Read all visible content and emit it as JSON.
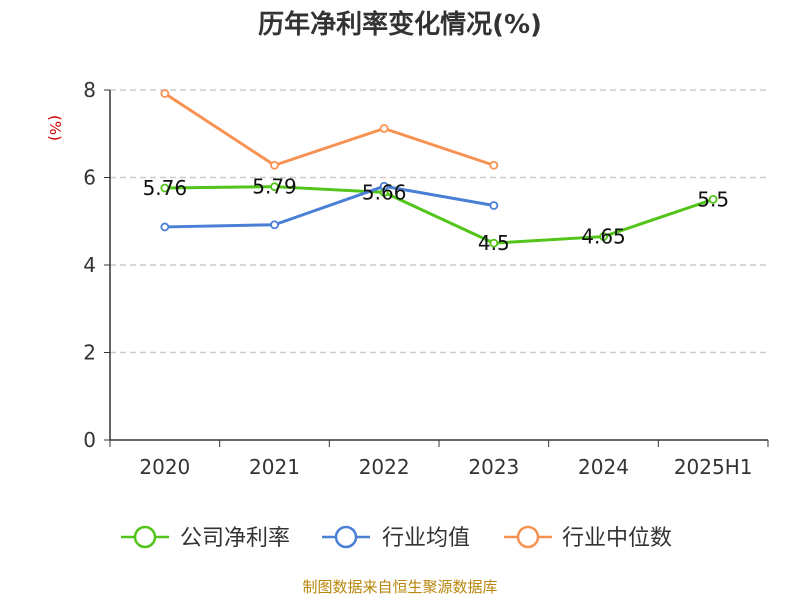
{
  "title": "历年净利率变化情况(%)",
  "source": "制图数据来自恒生聚源数据库",
  "chart_data": {
    "type": "line",
    "title": "历年净利率变化情况(%)",
    "ylabel": "(%)",
    "categories": [
      "2020",
      "2021",
      "2022",
      "2023",
      "2024",
      "2025H1"
    ],
    "ylim": [
      0,
      8
    ],
    "yticks": [
      0,
      2,
      4,
      6,
      8
    ],
    "grid": true,
    "legend_position": "bottom",
    "series": [
      {
        "name": "公司净利率",
        "color": "#52c41a",
        "values": [
          5.76,
          5.79,
          5.66,
          4.5,
          4.65,
          5.5
        ],
        "labels": [
          "5.76",
          "5.79",
          "5.66",
          "4.5",
          "4.65",
          "5.5"
        ]
      },
      {
        "name": "行业均值",
        "color": "#4a7fd6",
        "values": [
          4.87,
          4.92,
          5.8,
          5.36,
          null,
          null
        ]
      },
      {
        "name": "行业中位数",
        "color": "#f79253",
        "values": [
          7.92,
          6.28,
          7.12,
          6.28,
          null,
          null
        ]
      }
    ]
  }
}
